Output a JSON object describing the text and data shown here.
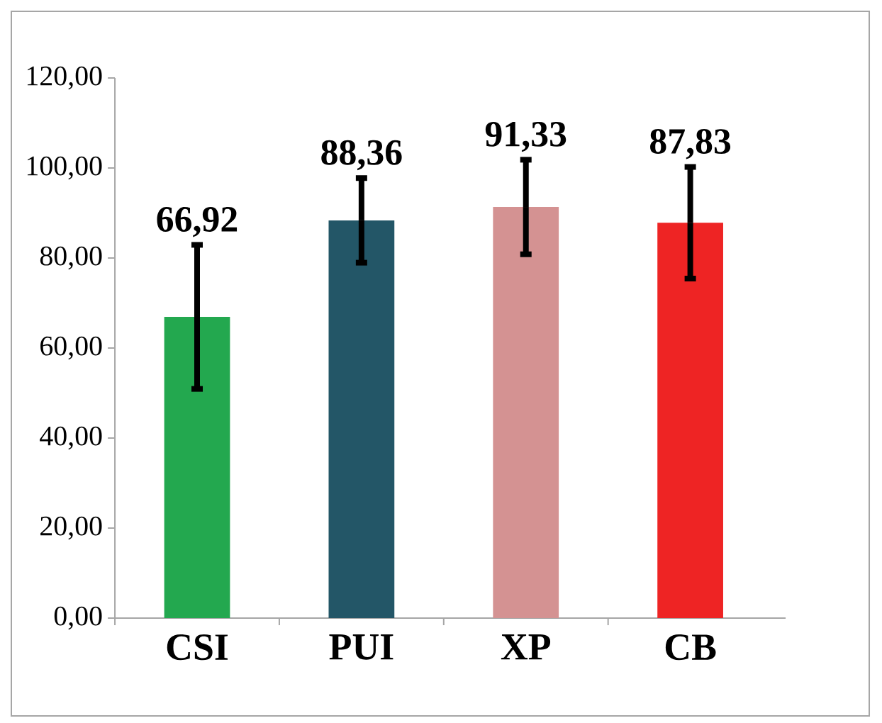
{
  "chart_data": {
    "type": "bar",
    "categories": [
      "CSI",
      "PUI",
      "XP",
      "CB"
    ],
    "values": [
      66.92,
      88.36,
      91.33,
      87.83
    ],
    "colors": [
      "#23a84f",
      "#235667",
      "#d49292",
      "#ee2424"
    ],
    "errors": [
      16,
      9.4,
      10.5,
      12.4
    ],
    "value_labels": [
      "66,92",
      "88,36",
      "91,33",
      "87,83"
    ],
    "ylim": [
      0,
      120
    ],
    "yticks": [
      {
        "value": 0,
        "label": "0,00"
      },
      {
        "value": 20,
        "label": "20,00"
      },
      {
        "value": 40,
        "label": "40,00"
      },
      {
        "value": 60,
        "label": "60,00"
      },
      {
        "value": 80,
        "label": "80,00"
      },
      {
        "value": 100,
        "label": "100,00"
      },
      {
        "value": 120,
        "label": "120,00"
      }
    ],
    "grid": false
  }
}
